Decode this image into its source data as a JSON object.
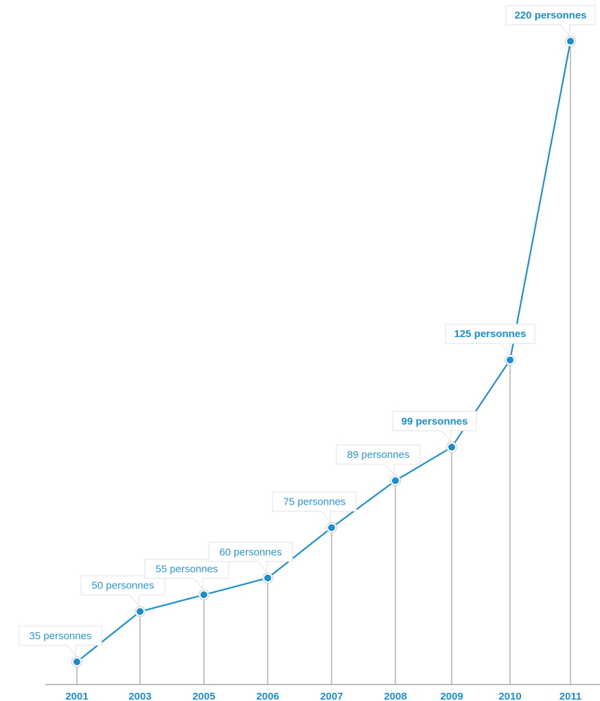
{
  "chart_data": {
    "type": "line",
    "title": "",
    "xlabel": "",
    "ylabel": "",
    "categories": [
      "2001",
      "2003",
      "2005",
      "2006",
      "2007",
      "2008",
      "2009",
      "2010",
      "2011"
    ],
    "values": [
      35,
      50,
      55,
      60,
      75,
      89,
      99,
      125,
      220
    ],
    "data_labels": [
      "35 personnes",
      "50 personnes",
      "55 personnes",
      "60 personnes",
      "75 personnes",
      "89 personnes",
      "99 personnes",
      "125 personnes",
      "220 personnes"
    ],
    "bold_labels": [
      false,
      false,
      false,
      false,
      false,
      false,
      true,
      true,
      true
    ],
    "ylim": [
      20,
      220
    ],
    "grid": false,
    "colors": {
      "line": "#1a8fd0",
      "marker_fill": "#1a8fd0",
      "marker_ring": "#ffffff",
      "drop_line": "#8a8a8a",
      "axis": "#7a7a7a",
      "label_text": "#2a96d4"
    }
  }
}
